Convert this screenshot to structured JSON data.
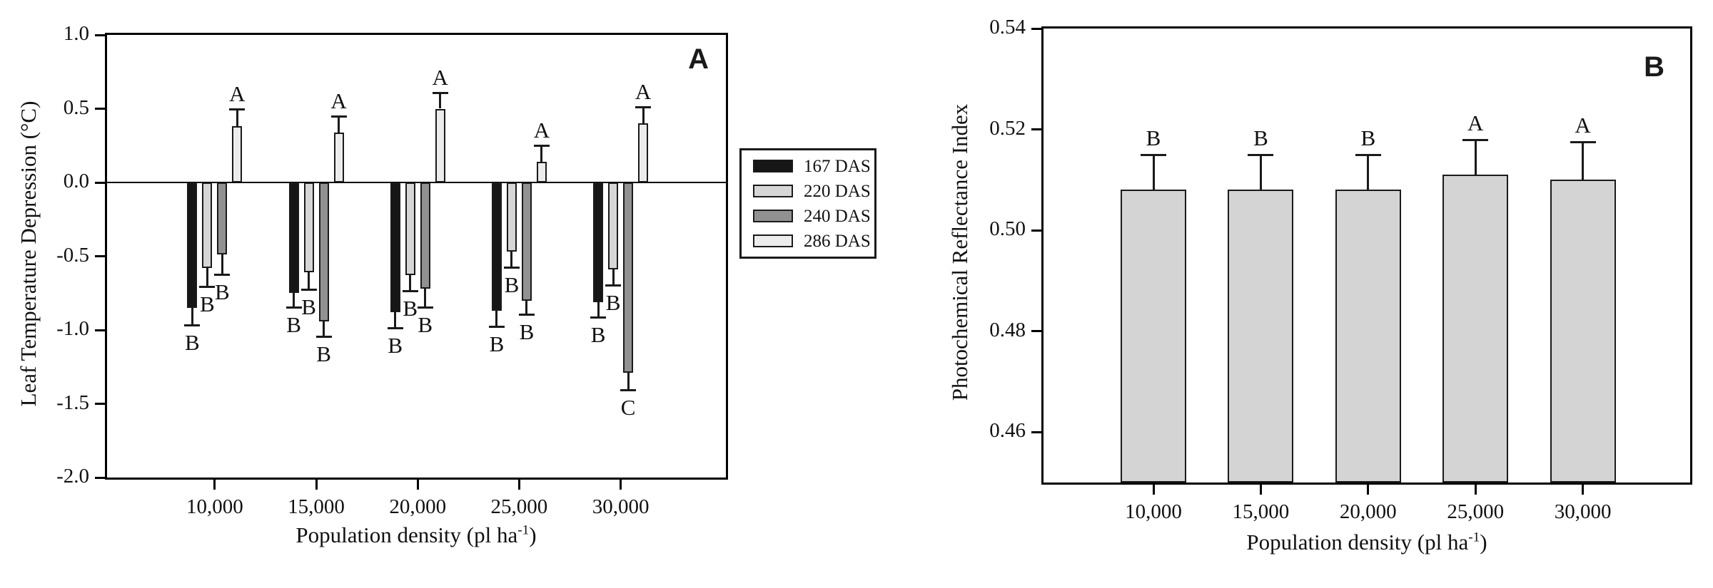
{
  "figure_background": "#ffffff",
  "axis_color": "#000000",
  "chart_data": [
    {
      "type": "bar",
      "panel_label": "A",
      "ylabel": "Leaf Temperature Depression (°C)",
      "xlabel_prefix": "Population density (pl ha",
      "xlabel_sup": "-1",
      "xlabel_suffix": ")",
      "ylim": [
        -2.0,
        1.0
      ],
      "bar_baseline": 0.0,
      "grid": "off",
      "legend_position": "outside-right",
      "ytick_labels": [
        "1.0",
        "0.5",
        "0.0",
        "-0.5",
        "-1.0",
        "-1.5",
        "-2.0"
      ],
      "ytick_values": [
        1.0,
        0.5,
        0.0,
        -0.5,
        -1.0,
        -1.5,
        -2.0
      ],
      "categories": [
        "10,000",
        "15,000",
        "20,000",
        "25,000",
        "30,000"
      ],
      "series": [
        {
          "name": "167 DAS",
          "color": "#161616",
          "values": [
            -0.85,
            -0.75,
            -0.88,
            -0.87,
            -0.81
          ],
          "errors": [
            0.12,
            0.1,
            0.11,
            0.11,
            0.11
          ],
          "letters": [
            "B",
            "B",
            "B",
            "B",
            "B"
          ]
        },
        {
          "name": "220 DAS",
          "color": "#d6d6d6",
          "values": [
            -0.58,
            -0.61,
            -0.63,
            -0.47,
            -0.59
          ],
          "errors": [
            0.13,
            0.12,
            0.11,
            0.11,
            0.11
          ],
          "letters": [
            "B",
            "B",
            "B",
            "B",
            "B"
          ]
        },
        {
          "name": "240 DAS",
          "color": "#919191",
          "values": [
            -0.49,
            -0.94,
            -0.72,
            -0.8,
            -1.29
          ],
          "errors": [
            0.14,
            0.11,
            0.13,
            0.1,
            0.12
          ],
          "letters": [
            "B",
            "B",
            "B",
            "B",
            "C"
          ]
        },
        {
          "name": "286 DAS",
          "color": "#ececec",
          "values": [
            0.38,
            0.34,
            0.5,
            0.14,
            0.4
          ],
          "errors": [
            0.12,
            0.11,
            0.11,
            0.11,
            0.11
          ],
          "letters": [
            "A",
            "A",
            "A",
            "A",
            "A"
          ]
        }
      ]
    },
    {
      "type": "bar",
      "panel_label": "B",
      "ylabel": "Photochemical Reflectance Index",
      "xlabel_prefix": "Population density (pl ha",
      "xlabel_sup": "-1",
      "xlabel_suffix": ")",
      "ylim": [
        0.45,
        0.54
      ],
      "bar_baseline": 0.45,
      "grid": "off",
      "legend_position": "none",
      "ytick_labels": [
        "0.54",
        "0.52",
        "0.50",
        "0.48",
        "0.46"
      ],
      "ytick_values": [
        0.54,
        0.52,
        0.5,
        0.48,
        0.46
      ],
      "categories": [
        "10,000",
        "15,000",
        "20,000",
        "25,000",
        "30,000"
      ],
      "series": [
        {
          "color": "#d4d4d4",
          "values": [
            0.508,
            0.508,
            0.508,
            0.511,
            0.51
          ],
          "errors": [
            0.007,
            0.007,
            0.007,
            0.007,
            0.0075
          ],
          "letters": [
            "B",
            "B",
            "B",
            "A",
            "A"
          ]
        }
      ]
    }
  ]
}
